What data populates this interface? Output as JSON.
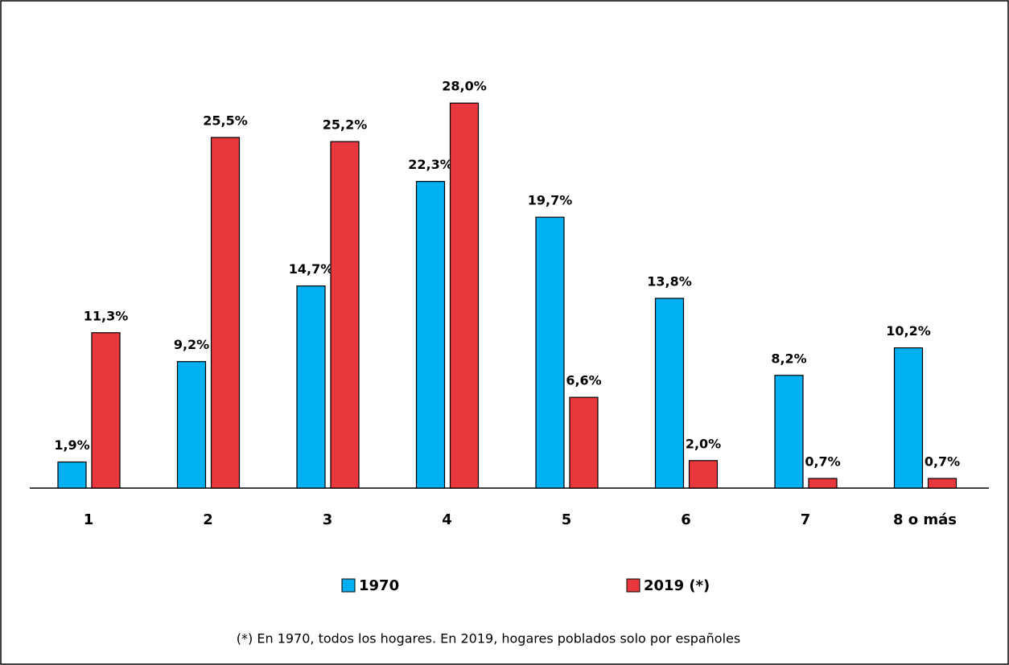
{
  "chart_data": {
    "type": "bar",
    "categories": [
      "1",
      "2",
      "3",
      "4",
      "5",
      "6",
      "7",
      "8 o más"
    ],
    "series": [
      {
        "name": "1970",
        "color": "#00b0f0",
        "values": [
          1.9,
          9.2,
          14.7,
          22.3,
          19.7,
          13.8,
          8.2,
          10.2
        ],
        "value_labels": [
          "1,9%",
          "9,2%",
          "14,7%",
          "22,3%",
          "19,7%",
          "13,8%",
          "8,2%",
          "10,2%"
        ]
      },
      {
        "name": "2019 (*)",
        "color": "#e8383d",
        "values": [
          11.3,
          25.5,
          25.2,
          28.0,
          6.6,
          2.0,
          0.7,
          0.7
        ],
        "value_labels": [
          "11,3%",
          "25,5%",
          "25,2%",
          "28,0%",
          "6,6%",
          "2,0%",
          "0,7%",
          "0,7%"
        ]
      }
    ],
    "note": "(*) En 1970, todos los hogares. En 2019, hogares poblados solo por españoles"
  }
}
